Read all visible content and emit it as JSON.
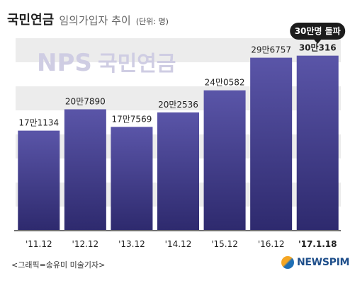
{
  "header": {
    "title": "국민연금",
    "subtitle": "임의가입자 추이",
    "unit": "(단위: 명)"
  },
  "watermark": {
    "brand": "NPS",
    "name": "국민연금"
  },
  "callout": {
    "text": "30만명 돌파"
  },
  "footer": {
    "credit": "<그래픽=송유미 미술기자>",
    "logo": "NEWSPIM"
  },
  "colors": {
    "bar_top": "#5a55a8",
    "bar_bottom": "#2e2a6e",
    "grid_band": "#ececec",
    "callout_bg": "#1c1c1c",
    "watermark": "#cfcde3"
  },
  "chart_data": {
    "type": "bar",
    "categories": [
      "'11.12",
      "'12.12",
      "'13.12",
      "'14.12",
      "'15.12",
      "'16.12",
      "'17.1.18"
    ],
    "values": [
      171134,
      207890,
      177569,
      202536,
      240582,
      296757,
      300316
    ],
    "value_labels": [
      "17만1134",
      "20만7890",
      "17만7569",
      "20만2536",
      "24만0582",
      "29만6757",
      "30만316"
    ],
    "title": "임의가입자 추이",
    "xlabel": "",
    "ylabel": "",
    "unit": "명",
    "ylim": [
      0,
      345000
    ],
    "grid": true
  }
}
